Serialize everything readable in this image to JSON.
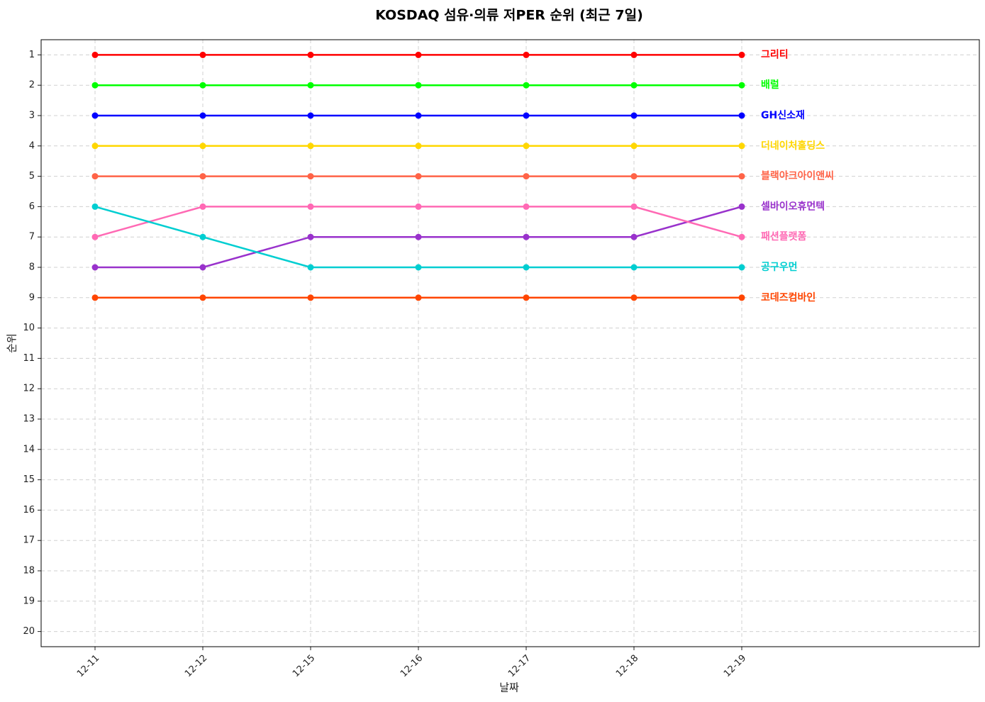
{
  "chart_data": {
    "type": "line",
    "title": "KOSDAQ 섬유·의류 저PER 순위 (최근 7일)",
    "x_label": "날짜",
    "y_label": "순위",
    "categories": [
      "12-11",
      "12-12",
      "12-15",
      "12-16",
      "12-17",
      "12-18",
      "12-19"
    ],
    "series": [
      {
        "name": "그리티",
        "color": "#ff0000",
        "values": [
          1,
          1,
          1,
          1,
          1,
          1,
          1
        ]
      },
      {
        "name": "배럴",
        "color": "#00ff00",
        "values": [
          2,
          2,
          2,
          2,
          2,
          2,
          2
        ]
      },
      {
        "name": "GH신소재",
        "color": "#0000ff",
        "values": [
          3,
          3,
          3,
          3,
          3,
          3,
          3
        ]
      },
      {
        "name": "더네이처홀딩스",
        "color": "#ffd700",
        "values": [
          4,
          4,
          4,
          4,
          4,
          4,
          4
        ]
      },
      {
        "name": "블랙야크아이앤씨",
        "color": "#ff6347",
        "values": [
          5,
          5,
          5,
          5,
          5,
          5,
          5
        ]
      },
      {
        "name": "셀바이오휴먼텍",
        "color": "#9932cc",
        "values": [
          8,
          8,
          7,
          7,
          7,
          7,
          6
        ]
      },
      {
        "name": "패션플랫폼",
        "color": "#ff69b4",
        "values": [
          7,
          6,
          6,
          6,
          6,
          6,
          7
        ]
      },
      {
        "name": "공구우먼",
        "color": "#00ced1",
        "values": [
          6,
          7,
          8,
          8,
          8,
          8,
          8
        ]
      },
      {
        "name": "코데즈컴바인",
        "color": "#ff4500",
        "values": [
          9,
          9,
          9,
          9,
          9,
          9,
          9
        ]
      }
    ],
    "ylim": [
      20.5,
      0.5
    ],
    "yticks": [
      1,
      2,
      3,
      4,
      5,
      6,
      7,
      8,
      9,
      10,
      11,
      12,
      13,
      14,
      15,
      16,
      17,
      18,
      19,
      20
    ],
    "y_inverted": true,
    "grid": true
  }
}
